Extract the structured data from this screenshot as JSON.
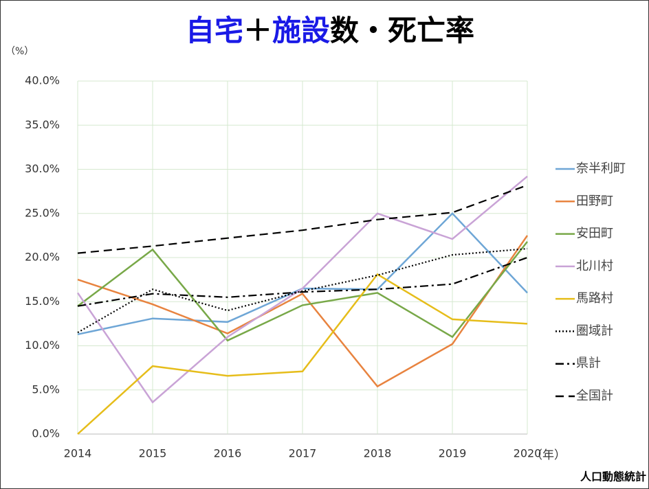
{
  "chart_data": {
    "type": "line",
    "title": [
      "自宅",
      "＋",
      "施設",
      "数・死亡率"
    ],
    "y_unit_label": "（%）",
    "x_unit_label": "（年）",
    "source": "人口動態統計",
    "x": [
      2014,
      2015,
      2016,
      2017,
      2018,
      2019,
      2020
    ],
    "xlim": [
      2014,
      2020
    ],
    "xticks": [
      2014,
      2015,
      2016,
      2017,
      2018,
      2019,
      2020
    ],
    "ylim": [
      0,
      40
    ],
    "yticks": [
      {
        "value": 0,
        "label": "0.0%"
      },
      {
        "value": 5,
        "label": "5.0%"
      },
      {
        "value": 10,
        "label": "10.0%"
      },
      {
        "value": 15,
        "label": "15.0%"
      },
      {
        "value": 20,
        "label": "20.0%"
      },
      {
        "value": 25,
        "label": "25.0%"
      },
      {
        "value": 30,
        "label": "30.0%"
      },
      {
        "value": 35,
        "label": "35.0%"
      },
      {
        "value": 40,
        "label": "40.0%"
      }
    ],
    "grid": true,
    "legend": "right",
    "series": [
      {
        "name": "奈半利町",
        "color": "#6ea6d6",
        "dash": "solid",
        "values": [
          11.3,
          13.1,
          12.7,
          16.5,
          16.4,
          25.0,
          16.0
        ]
      },
      {
        "name": "田野町",
        "color": "#e8833f",
        "dash": "solid",
        "values": [
          17.5,
          14.7,
          11.4,
          15.9,
          5.4,
          10.2,
          22.5
        ]
      },
      {
        "name": "安田町",
        "color": "#78a848",
        "dash": "solid",
        "values": [
          14.5,
          20.9,
          10.6,
          14.6,
          16.0,
          11.0,
          21.8
        ]
      },
      {
        "name": "北川村",
        "color": "#c9a3d6",
        "dash": "solid",
        "values": [
          16.0,
          3.6,
          11.0,
          16.5,
          25.0,
          22.1,
          29.2
        ]
      },
      {
        "name": "馬路村",
        "color": "#e6bd1a",
        "dash": "solid",
        "values": [
          0.0,
          7.7,
          6.6,
          7.1,
          18.1,
          13.0,
          12.5
        ]
      },
      {
        "name": "圏域計",
        "color": "#000000",
        "dash": "dotted",
        "values": [
          11.5,
          16.4,
          14.0,
          16.2,
          18.0,
          20.3,
          21.0
        ]
      },
      {
        "name": "県計",
        "color": "#000000",
        "dash": "dashdot",
        "values": [
          14.5,
          15.9,
          15.5,
          16.1,
          16.4,
          17.0,
          20.0
        ]
      },
      {
        "name": "全国計",
        "color": "#000000",
        "dash": "dashed",
        "values": [
          20.5,
          21.3,
          22.2,
          23.1,
          24.3,
          25.1,
          28.2
        ]
      }
    ]
  }
}
